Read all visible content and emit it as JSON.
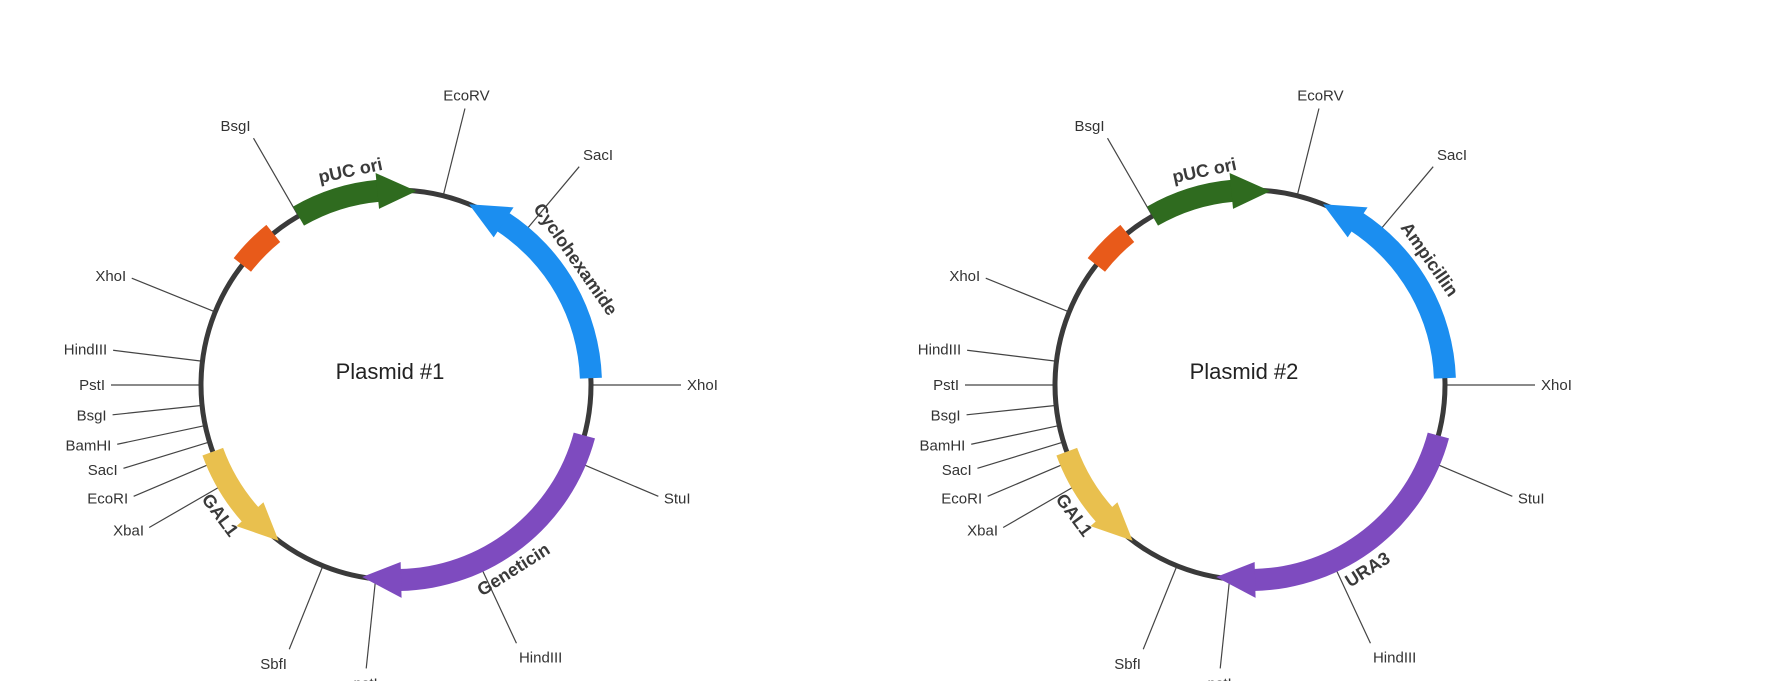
{
  "colors": {
    "ori": "#2f6b1f",
    "marker": "#1b8ef0",
    "select": "#7e4bbf",
    "promoter": "#e9c04e",
    "block": "#e85a1a",
    "backbone": "#3a3a3a"
  },
  "plasmids": [
    {
      "title": "Plasmid #1",
      "features": [
        {
          "label": "pUC ori",
          "color_key": "ori",
          "start": 330,
          "end": 6,
          "dir": "cw"
        },
        {
          "label": "Cyclohexamide",
          "color_key": "marker",
          "start": 22,
          "end": 88,
          "dir": "ccw"
        },
        {
          "label": "Geneticin",
          "color_key": "select",
          "start": 105,
          "end": 190,
          "dir": "cw"
        },
        {
          "label": "GAL1",
          "color_key": "promoter",
          "start": 217,
          "end": 250,
          "dir": "ccw"
        },
        {
          "label": "",
          "color_key": "block",
          "start": 308,
          "end": 321,
          "dir": "none"
        }
      ],
      "sites": [
        {
          "label": "EcoRV",
          "angle": 14
        },
        {
          "label": "SacI",
          "angle": 40
        },
        {
          "label": "XhoI",
          "angle": 90
        },
        {
          "label": "StuI",
          "angle": 113
        },
        {
          "label": "HindIII",
          "angle": 155
        },
        {
          "label": "pstI",
          "angle": 186
        },
        {
          "label": "SbfI",
          "angle": 202
        },
        {
          "label": "XbaI",
          "angle": 240
        },
        {
          "label": "EcoRI",
          "angle": 247
        },
        {
          "label": "SacI",
          "angle": 253
        },
        {
          "label": "BamHI",
          "angle": 258
        },
        {
          "label": "BsgI",
          "angle": 264
        },
        {
          "label": "PstI",
          "angle": 270
        },
        {
          "label": "HindIII",
          "angle": 277
        },
        {
          "label": "XhoI",
          "angle": 292
        },
        {
          "label": "BsgI",
          "angle": 330
        }
      ]
    },
    {
      "title": "Plasmid #2",
      "features": [
        {
          "label": "pUC ori",
          "color_key": "ori",
          "start": 330,
          "end": 6,
          "dir": "cw"
        },
        {
          "label": "Ampicillin",
          "color_key": "marker",
          "start": 22,
          "end": 88,
          "dir": "ccw"
        },
        {
          "label": "URA3",
          "color_key": "select",
          "start": 105,
          "end": 190,
          "dir": "cw"
        },
        {
          "label": "GAL1",
          "color_key": "promoter",
          "start": 217,
          "end": 250,
          "dir": "ccw"
        },
        {
          "label": "",
          "color_key": "block",
          "start": 308,
          "end": 321,
          "dir": "none"
        }
      ],
      "sites": [
        {
          "label": "EcoRV",
          "angle": 14
        },
        {
          "label": "SacI",
          "angle": 40
        },
        {
          "label": "XhoI",
          "angle": 90
        },
        {
          "label": "StuI",
          "angle": 113
        },
        {
          "label": "HindIII",
          "angle": 155
        },
        {
          "label": "pstI",
          "angle": 186
        },
        {
          "label": "SbfI",
          "angle": 202
        },
        {
          "label": "XbaI",
          "angle": 240
        },
        {
          "label": "EcoRI",
          "angle": 247
        },
        {
          "label": "SacI",
          "angle": 253
        },
        {
          "label": "BamHI",
          "angle": 258
        },
        {
          "label": "BsgI",
          "angle": 264
        },
        {
          "label": "PstI",
          "angle": 270
        },
        {
          "label": "HindIII",
          "angle": 277
        },
        {
          "label": "XhoI",
          "angle": 292
        },
        {
          "label": "BsgI",
          "angle": 330
        }
      ]
    }
  ]
}
